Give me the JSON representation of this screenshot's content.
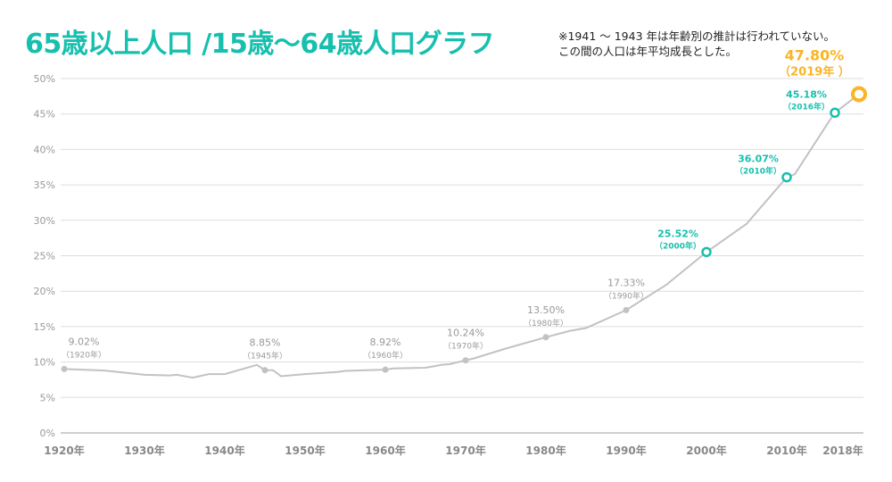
{
  "title": "65歳以上人口 /15歳〜64歳人口グラフ",
  "note": [
    "※1941 〜 1943 年は年齢別の推計は行われていない。",
    "この間の人口は年平均成長とした。"
  ],
  "colors": {
    "title": "#17bfae",
    "line": "#c2c2c2",
    "gray_label": "#999999",
    "teal": "#17bfae",
    "orange": "#fbb424",
    "grid": "#dddddd"
  },
  "chart_data": {
    "type": "line",
    "ylim": [
      0,
      50
    ],
    "xlim": [
      1920,
      2019
    ],
    "grid": true,
    "yticks": [
      "0%",
      "5%",
      "10%",
      "15%",
      "20%",
      "25%",
      "30%",
      "35%",
      "40%",
      "45%",
      "50%"
    ],
    "xticks": [
      {
        "year": 1920,
        "label": "1920年"
      },
      {
        "year": 1930,
        "label": "1930年"
      },
      {
        "year": 1940,
        "label": "1940年"
      },
      {
        "year": 1950,
        "label": "1950年"
      },
      {
        "year": 1960,
        "label": "1960年"
      },
      {
        "year": 1970,
        "label": "1970年"
      },
      {
        "year": 1980,
        "label": "1980年"
      },
      {
        "year": 1990,
        "label": "1990年"
      },
      {
        "year": 2000,
        "label": "2000年"
      },
      {
        "year": 2010,
        "label": "2010年"
      },
      {
        "year": 2018,
        "label": "2018年"
      }
    ],
    "x": [
      1920,
      1925,
      1930,
      1933,
      1934,
      1936,
      1938,
      1940,
      1944,
      1945,
      1946,
      1947,
      1950,
      1954,
      1955,
      1960,
      1961,
      1965,
      1967,
      1968,
      1970,
      1971,
      1975,
      1980,
      1983,
      1985,
      1990,
      1995,
      2000,
      2005,
      2010,
      2011,
      2013,
      2015,
      2016,
      2019
    ],
    "y": [
      9.02,
      8.8,
      8.2,
      8.1,
      8.2,
      7.8,
      8.3,
      8.3,
      9.6,
      8.85,
      8.85,
      8.0,
      8.3,
      8.6,
      8.75,
      8.92,
      9.1,
      9.2,
      9.6,
      9.7,
      10.24,
      10.5,
      11.9,
      13.5,
      14.4,
      14.8,
      17.33,
      20.9,
      25.52,
      29.5,
      36.07,
      36.5,
      40.0,
      43.5,
      45.18,
      47.8
    ],
    "annotations": [
      {
        "year": 1920,
        "value": 9.02,
        "label": "9.02%",
        "sub": "（1920年）",
        "style": "gray"
      },
      {
        "year": 1945,
        "value": 8.85,
        "label": "8.85%",
        "sub": "（1945年）",
        "style": "gray"
      },
      {
        "year": 1960,
        "value": 8.92,
        "label": "8.92%",
        "sub": "（1960年）",
        "style": "gray"
      },
      {
        "year": 1970,
        "value": 10.24,
        "label": "10.24%",
        "sub": "（1970年）",
        "style": "gray"
      },
      {
        "year": 1980,
        "value": 13.5,
        "label": "13.50%",
        "sub": "（1980年）",
        "style": "gray"
      },
      {
        "year": 1990,
        "value": 17.33,
        "label": "17.33%",
        "sub": "（1990年）",
        "style": "gray"
      },
      {
        "year": 2000,
        "value": 25.52,
        "label": "25.52%",
        "sub": "（2000年）",
        "style": "teal"
      },
      {
        "year": 2010,
        "value": 36.07,
        "label": "36.07%",
        "sub": "（2010年）",
        "style": "teal"
      },
      {
        "year": 2016,
        "value": 45.18,
        "label": "45.18%",
        "sub": "（2016年）",
        "style": "teal"
      },
      {
        "year": 2019,
        "value": 47.8,
        "label": "47.80%",
        "sub": "（2019年 ）",
        "style": "orange"
      }
    ]
  }
}
